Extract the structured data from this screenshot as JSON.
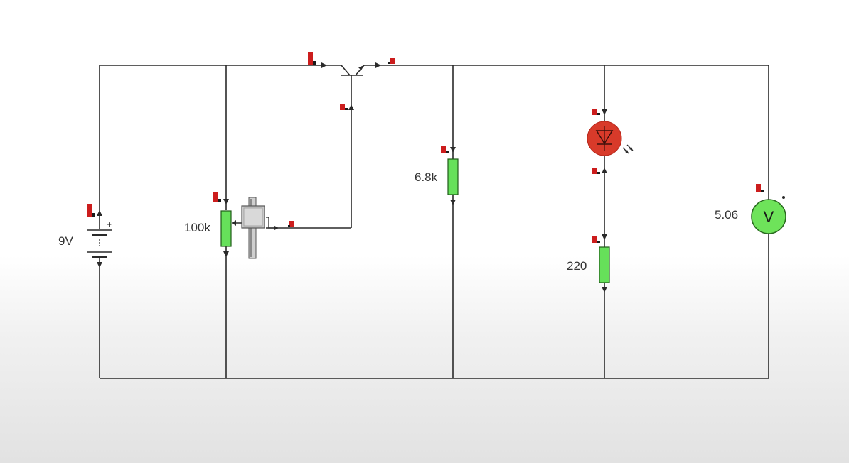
{
  "circuit": {
    "battery": {
      "label": "9V"
    },
    "potentiometer": {
      "label": "100k"
    },
    "resistor_mid": {
      "label": "6.8k"
    },
    "resistor_led": {
      "label": "220"
    },
    "voltmeter": {
      "reading": "5.06",
      "symbol": "V"
    }
  },
  "colors": {
    "wire": "#2a2a2a",
    "resistor_fill": "#66e05a",
    "resistor_stroke": "#1f5a18",
    "led_fill": "#d83a2a",
    "probe_red": "#cc1d1d",
    "voltmeter_fill": "#6ee35a"
  },
  "icons": {
    "led": "led-icon",
    "transistor": "npn-transistor-icon",
    "battery": "battery-icon",
    "voltmeter": "voltmeter-icon"
  }
}
